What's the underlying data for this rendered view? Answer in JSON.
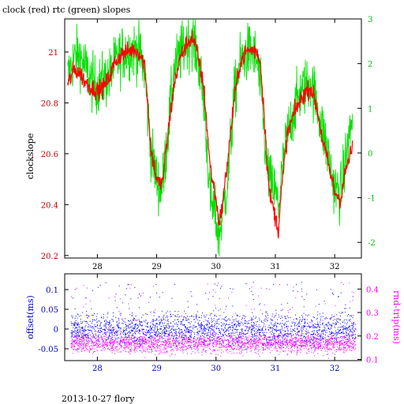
{
  "title": "clock (red) rtc (green) slopes",
  "footer": "2013-10-27 flory",
  "colors": {
    "clock": "#ff0000",
    "rtc": "#00e000",
    "offset": "#0000ff",
    "rndtrip": "#ff00ff",
    "bottom_axis": "#0000cc"
  },
  "chart_data": [
    {
      "type": "line",
      "title": "clock (red) rtc (green) slopes",
      "xlabel": "",
      "xlim": [
        27.45,
        32.45
      ],
      "xticks": [
        28,
        29,
        30,
        31,
        32
      ],
      "grid": false,
      "left_axis": {
        "label": "clockslope",
        "ylim": [
          20.19,
          21.13
        ],
        "ticks": [
          20.2,
          20.4,
          20.6,
          20.8,
          21
        ],
        "tick_labels": [
          "20.2",
          "20.4",
          "20.6",
          "20.8",
          "21"
        ]
      },
      "right_axis": {
        "label": "",
        "ylim": [
          -2.35,
          3.0
        ],
        "ticks": [
          -2,
          -1,
          0,
          1,
          2,
          3
        ],
        "tick_labels": [
          "-2",
          "-1",
          "0",
          "1",
          "2",
          "3"
        ]
      },
      "series": [
        {
          "name": "clock",
          "axis": "left",
          "x": [
            27.5,
            27.6,
            27.7,
            27.8,
            27.9,
            28.0,
            28.1,
            28.2,
            28.3,
            28.4,
            28.5,
            28.6,
            28.7,
            28.8,
            28.85,
            28.9,
            29.0,
            29.05,
            29.1,
            29.2,
            29.3,
            29.4,
            29.5,
            29.6,
            29.7,
            29.8,
            29.85,
            29.9,
            30.0,
            30.05,
            30.1,
            30.2,
            30.3,
            30.4,
            30.5,
            30.6,
            30.7,
            30.75,
            30.8,
            30.85,
            30.9,
            31.0,
            31.05,
            31.1,
            31.2,
            31.3,
            31.4,
            31.5,
            31.6,
            31.7,
            31.8,
            31.9,
            32.0,
            32.1,
            32.2,
            32.3
          ],
          "values": [
            20.87,
            20.93,
            20.92,
            20.88,
            20.86,
            20.85,
            20.86,
            20.9,
            20.96,
            20.99,
            21.0,
            21.01,
            21.0,
            20.95,
            20.8,
            20.62,
            20.5,
            20.48,
            20.49,
            20.7,
            20.88,
            20.98,
            21.03,
            21.06,
            20.98,
            20.85,
            20.7,
            20.55,
            20.42,
            20.33,
            20.38,
            20.58,
            20.8,
            20.95,
            21.0,
            21.01,
            21.0,
            20.95,
            20.8,
            20.6,
            20.45,
            20.35,
            20.3,
            20.45,
            20.67,
            20.75,
            20.8,
            20.84,
            20.86,
            20.78,
            20.65,
            20.55,
            20.45,
            20.42,
            20.55,
            20.62
          ]
        },
        {
          "name": "rtc",
          "axis": "right",
          "x": [
            27.5,
            27.6,
            27.7,
            27.8,
            27.9,
            28.0,
            28.1,
            28.2,
            28.3,
            28.4,
            28.5,
            28.6,
            28.7,
            28.8,
            28.85,
            28.9,
            29.0,
            29.05,
            29.1,
            29.2,
            29.3,
            29.4,
            29.5,
            29.6,
            29.7,
            29.8,
            29.85,
            29.9,
            30.0,
            30.05,
            30.1,
            30.2,
            30.3,
            30.4,
            30.5,
            30.6,
            30.7,
            30.75,
            30.8,
            30.85,
            30.9,
            31.0,
            31.05,
            31.1,
            31.2,
            31.3,
            31.4,
            31.5,
            31.6,
            31.7,
            31.8,
            31.9,
            32.0,
            32.1,
            32.2,
            32.3
          ],
          "values": [
            1.7,
            2.1,
            2.2,
            1.9,
            1.6,
            1.5,
            1.6,
            1.7,
            2.0,
            2.2,
            2.3,
            2.3,
            2.3,
            1.8,
            0.9,
            0.1,
            -0.6,
            -0.8,
            -0.7,
            0.6,
            1.9,
            2.2,
            2.5,
            2.6,
            2.1,
            1.1,
            0.1,
            -1.0,
            -1.5,
            -1.9,
            -1.4,
            -0.6,
            1.2,
            2.0,
            2.2,
            2.3,
            2.0,
            1.4,
            0.7,
            -0.2,
            -0.6,
            -0.9,
            -1.2,
            -0.6,
            0.4,
            0.9,
            1.3,
            1.5,
            1.6,
            1.1,
            0.5,
            -0.1,
            -0.8,
            -0.9,
            0.0,
            0.8
          ]
        }
      ]
    },
    {
      "type": "scatter",
      "xlabel": "",
      "xlim": [
        27.45,
        32.45
      ],
      "xticks": [
        28,
        29,
        30,
        31,
        32
      ],
      "grid": false,
      "left_axis": {
        "label": "offset(ms)",
        "ylim": [
          -0.08,
          0.14
        ],
        "ticks": [
          -0.05,
          0,
          0.05,
          0.1
        ],
        "tick_labels": [
          "-0.05",
          "0",
          "0.05",
          "0.1"
        ]
      },
      "right_axis": {
        "label": "rnd-trip(ms)",
        "ylim": [
          0.095,
          0.465
        ],
        "ticks": [
          0.1,
          0.2,
          0.3,
          0.4
        ],
        "tick_labels": [
          "0.1",
          "0.2",
          "0.3",
          "0.4"
        ]
      },
      "series": [
        {
          "name": "offset",
          "axis": "left",
          "x_range": [
            27.55,
            32.35
          ],
          "typical_range": [
            -0.025,
            0.025
          ],
          "center": 0.0,
          "outliers_up_to": 0.12
        },
        {
          "name": "rnd-trip",
          "axis": "right",
          "x_range": [
            27.55,
            32.35
          ],
          "typical_range": [
            0.15,
            0.2
          ],
          "center": 0.17,
          "outliers_up_to": 0.43
        }
      ]
    }
  ]
}
